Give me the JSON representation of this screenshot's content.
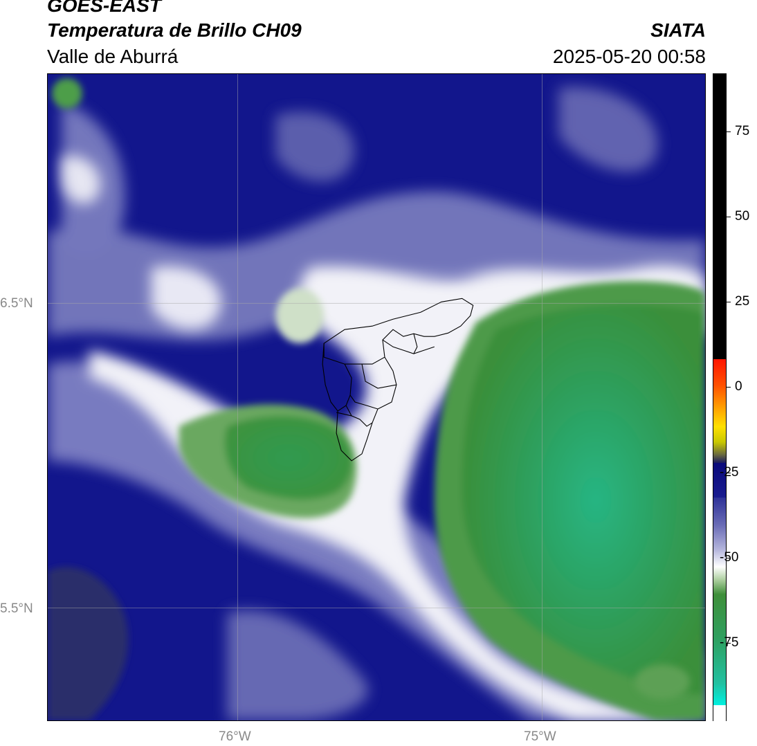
{
  "header": {
    "satellite": "GOES-EAST",
    "product": "Temperatura de Brillo CH09",
    "region": "Valle de Aburrá",
    "organization": "SIATA",
    "datetime": "2025-05-20 00:58"
  },
  "map": {
    "lat_labels": [
      "6.5°N",
      "5.5°N"
    ],
    "lon_labels": [
      "76°W",
      "75°W"
    ],
    "overlay": "Valle de Aburrá municipal boundaries"
  },
  "colorbar": {
    "tick_labels": [
      "75",
      "50",
      "25",
      "0",
      "-25",
      "-50",
      "-75"
    ],
    "tick_values": [
      75,
      50,
      25,
      0,
      -25,
      -50,
      -75
    ],
    "range": [
      -95,
      95
    ],
    "colors": {
      "warm_black": "#000000",
      "red": "#ff2000",
      "orange": "#ff8800",
      "yellow": "#ffff00",
      "navy": "#0a0f7a",
      "lavender": "#8e90c8",
      "white": "#ffffff",
      "green": "#2d8c34",
      "teal": "#1fbf8e",
      "cyan": "#00ffe0"
    }
  },
  "colors": {
    "cold_cloud_green": "#3a9940",
    "core_teal": "#26b07f",
    "clear_navy": "#10148a",
    "edge_white": "#f4f4fa"
  }
}
